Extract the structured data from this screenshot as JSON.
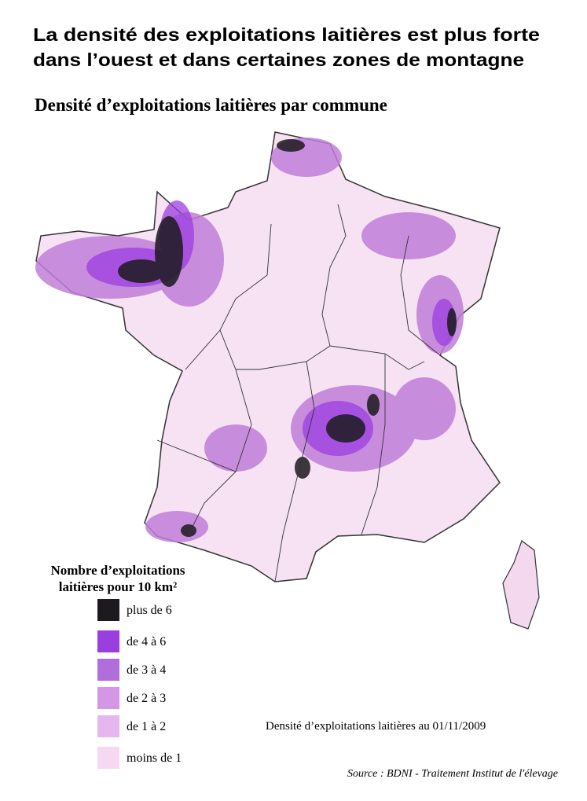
{
  "header": {
    "title_line1": "La densité des exploitations laitières est plus forte",
    "title_line2": "dans l’ouest et dans certaines zones de montagne"
  },
  "map": {
    "title": "Densité d’exploitations laitières par commune",
    "date_note": "Densité d’exploitations laitières au 01/11/2009"
  },
  "legend": {
    "title_line1": "Nombre d’exploitations",
    "title_line2": "laitières pour 10 km²",
    "items": [
      {
        "label": "plus de 6",
        "color": "#1c1a1e"
      },
      {
        "label": "de 4 à 6",
        "color": "#9b3ee0"
      },
      {
        "label": "de 3 à 4",
        "color": "#b06ddc"
      },
      {
        "label": "de 2 à 3",
        "color": "#d596e6"
      },
      {
        "label": "de 1 à 2",
        "color": "#e6b6ee"
      },
      {
        "label": "moins de 1",
        "color": "#f7d8f3"
      }
    ]
  },
  "source": "Source : BDNI - Traitement Institut de l'élevage"
}
